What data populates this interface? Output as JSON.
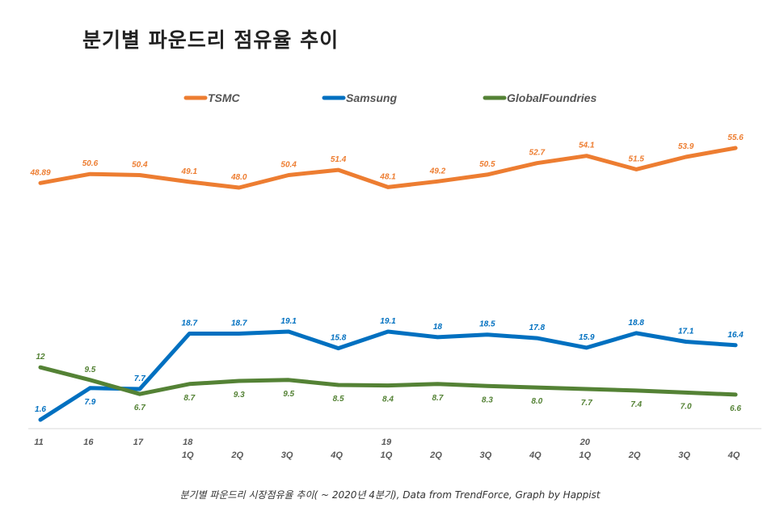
{
  "title": "분기별 파운드리 점유율 추이",
  "caption": "분기별 파운드리 시장점유율 추이( ~ 2020년 4분기), Data from TrendForce, Graph by Happist",
  "chart_data": {
    "type": "line",
    "title": "분기별 파운드리 점유율 추이",
    "legend_position": "top",
    "grid": false,
    "x_labels": [
      {
        "year": "11",
        "quarter": ""
      },
      {
        "year": "16",
        "quarter": ""
      },
      {
        "year": "17",
        "quarter": ""
      },
      {
        "year": "18",
        "quarter": "1Q"
      },
      {
        "year": "",
        "quarter": "2Q"
      },
      {
        "year": "",
        "quarter": "3Q"
      },
      {
        "year": "",
        "quarter": "4Q"
      },
      {
        "year": "19",
        "quarter": "1Q"
      },
      {
        "year": "",
        "quarter": "2Q"
      },
      {
        "year": "",
        "quarter": "3Q"
      },
      {
        "year": "",
        "quarter": "4Q"
      },
      {
        "year": "20",
        "quarter": "1Q"
      },
      {
        "year": "",
        "quarter": "2Q"
      },
      {
        "year": "",
        "quarter": "3Q"
      },
      {
        "year": "",
        "quarter": "4Q"
      }
    ],
    "series": [
      {
        "name": "TSMC",
        "color": "#ED7D31",
        "values": [
          48.89,
          50.6,
          50.4,
          49.1,
          48.0,
          50.4,
          51.4,
          48.1,
          49.2,
          50.5,
          52.7,
          54.1,
          51.5,
          53.9,
          55.6
        ],
        "labels": [
          "48.89",
          "50.6",
          "50.4",
          "49.1",
          "48.0",
          "50.4",
          "51.4",
          "48.1",
          "49.2",
          "50.5",
          "52.7",
          "54.1",
          "51.5",
          "53.9",
          "55.6"
        ]
      },
      {
        "name": "Samsung",
        "color": "#0070C0",
        "values": [
          1.6,
          7.9,
          7.7,
          18.7,
          18.7,
          19.1,
          15.8,
          19.1,
          18,
          18.5,
          17.8,
          15.9,
          18.8,
          17.1,
          16.4
        ],
        "labels": [
          "1.6",
          "7.9",
          "7.7",
          "18.7",
          "18.7",
          "19.1",
          "15.8",
          "19.1",
          "18",
          "18.5",
          "17.8",
          "15.9",
          "18.8",
          "17.1",
          "16.4"
        ]
      },
      {
        "name": "GlobalFoundries",
        "color": "#548235",
        "values": [
          12,
          9.5,
          6.7,
          8.7,
          9.3,
          9.5,
          8.5,
          8.4,
          8.7,
          8.3,
          8.0,
          7.7,
          7.4,
          7.0,
          6.6
        ],
        "labels": [
          "12",
          "9.5",
          "6.7",
          "8.7",
          "9.3",
          "9.5",
          "8.5",
          "8.4",
          "8.7",
          "8.3",
          "8.0",
          "7.7",
          "7.4",
          "7.0",
          "6.6"
        ]
      }
    ]
  }
}
